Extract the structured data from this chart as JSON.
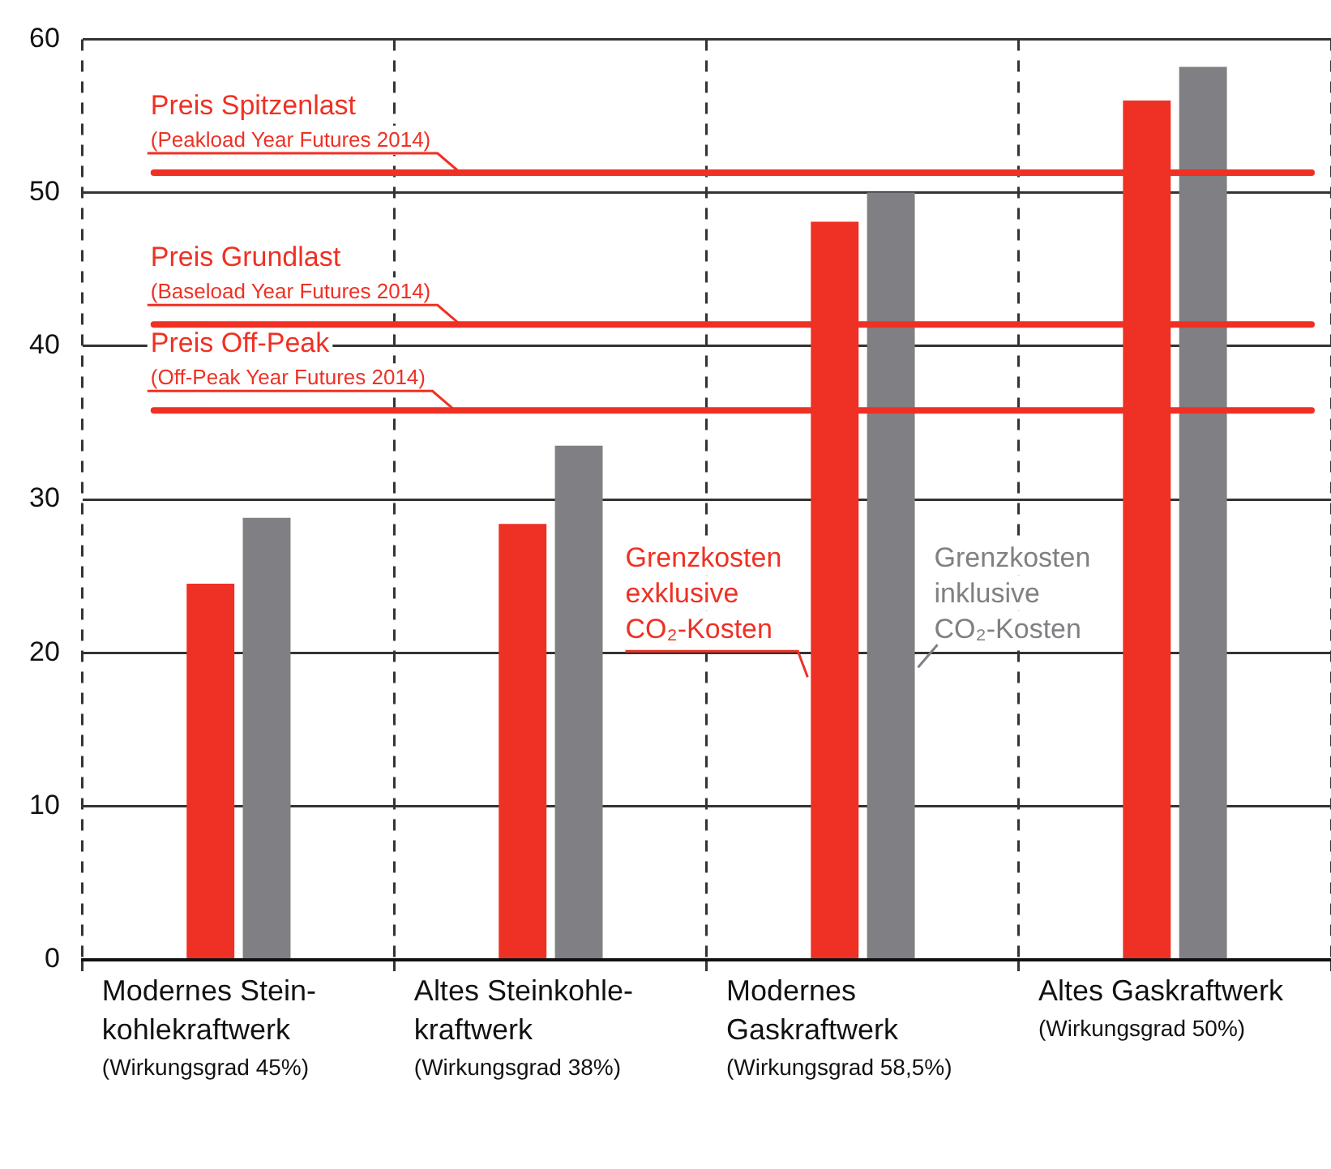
{
  "chart_data": {
    "type": "bar",
    "categories": [
      "Modernes Stein-\nkohlekraftwerk\n(Wirkungsgrad 45%)",
      "Altes Steinkohle-\nkraftwerk\n(Wirkungsgrad 38%)",
      "Modernes\nGaskraftwerk\n(Wirkungsgrad 58,5%)",
      "Altes Gaskraftwerk\n(Wirkungsgrad 50%)"
    ],
    "series": [
      {
        "name": "Grenzkosten\nexklusive\nCO₂-Kosten",
        "color": "#ee3124",
        "values": [
          24.5,
          28.4,
          48.1,
          56.0
        ]
      },
      {
        "name": "Grenzkosten\ninklusive\nCO₂-Kosten",
        "color": "#808084",
        "values": [
          28.8,
          33.5,
          50.0,
          58.2
        ]
      }
    ],
    "ylim": [
      0,
      60
    ],
    "yticks": [
      0,
      10,
      20,
      30,
      40,
      50,
      60
    ],
    "ref_lines": [
      {
        "axis": "y",
        "value": 51.3,
        "label": "Preis Spitzenlast\n(Peakload Year Futures 2014)",
        "color": "#ee3124"
      },
      {
        "axis": "y",
        "value": 41.4,
        "label": "Preis Grundlast\n(Baseload Year Futures 2014)",
        "color": "#ee3124"
      },
      {
        "axis": "y",
        "value": 35.8,
        "label": "Preis Off-Peak\n(Off-Peak Year Futures 2014)",
        "color": "#ee3124"
      }
    ],
    "grid": true,
    "legend": false
  }
}
